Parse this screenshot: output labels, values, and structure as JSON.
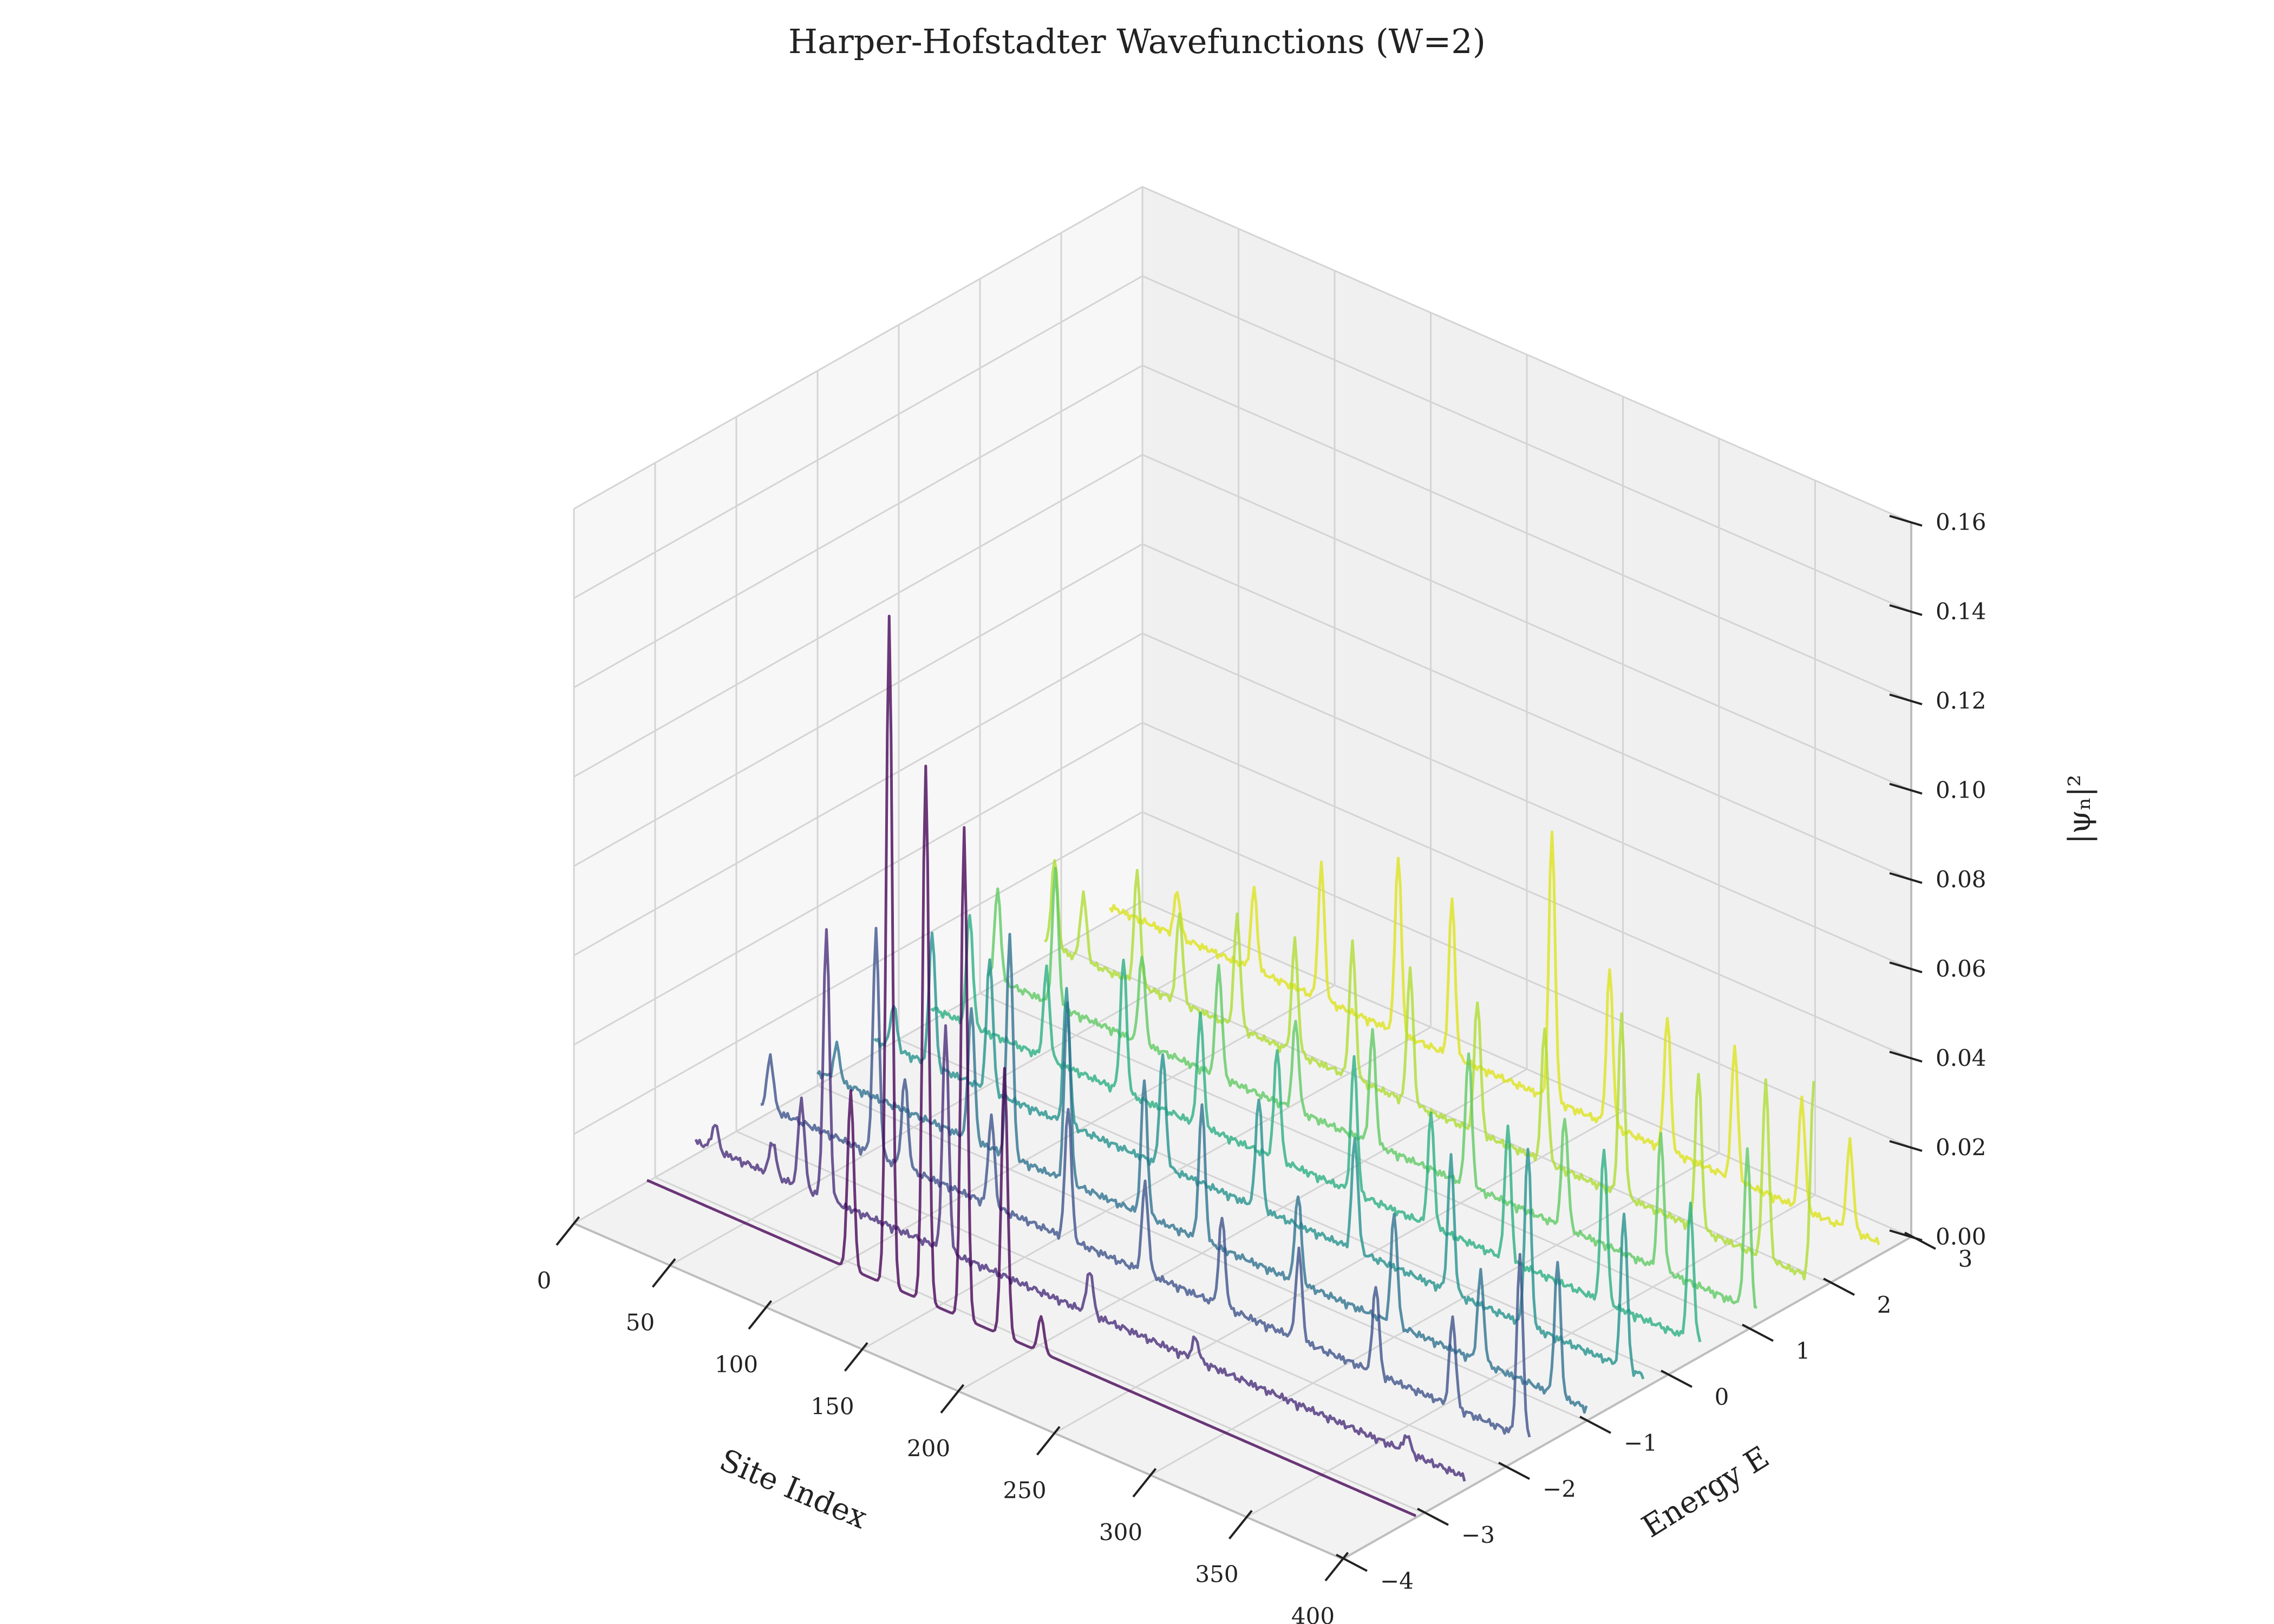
{
  "chart_data": {
    "type": "line",
    "title": "Harper-Hofstadter Wavefunctions (W=2)",
    "projection": "3d",
    "xlabel": "Site Index",
    "ylabel": "Energy E",
    "zlabel": "|ψₙ|²",
    "xlim": [
      0,
      400
    ],
    "ylim": [
      -4,
      3
    ],
    "zlim": [
      0,
      0.16
    ],
    "x_ticks": [
      "0",
      "50",
      "100",
      "150",
      "200",
      "250",
      "300",
      "350",
      "400"
    ],
    "y_ticks": [
      "−4",
      "−3",
      "−2",
      "−1",
      "0",
      "1",
      "2",
      "3"
    ],
    "z_ticks": [
      "0.00",
      "0.02",
      "0.04",
      "0.06",
      "0.08",
      "0.10",
      "0.12",
      "0.14",
      "0.16"
    ],
    "grid": true,
    "colormap": "viridis",
    "series": [
      {
        "energy": -3.1,
        "color": "#440154",
        "peaks": [
          [
            106,
            0.04
          ],
          [
            126,
            0.15
          ],
          [
            145,
            0.12
          ],
          [
            165,
            0.11
          ],
          [
            186,
            0.06
          ],
          [
            205,
            0.008
          ]
        ]
      },
      {
        "energy": -2.5,
        "color": "#472c7a",
        "peaks": [
          [
            10,
            0.006
          ],
          [
            40,
            0.008
          ],
          [
            55,
            0.02
          ],
          [
            68,
            0.06
          ],
          [
            130,
            0.05
          ],
          [
            205,
            0.01
          ],
          [
            260,
            0.005
          ],
          [
            370,
            0.004
          ]
        ]
      },
      {
        "energy": -1.7,
        "color": "#3b518b",
        "peaks": [
          [
            5,
            0.012
          ],
          [
            60,
            0.05
          ],
          [
            75,
            0.02
          ],
          [
            120,
            0.02
          ],
          [
            160,
            0.03
          ],
          [
            200,
            0.02
          ],
          [
            240,
            0.02
          ],
          [
            280,
            0.02
          ],
          [
            320,
            0.02
          ],
          [
            360,
            0.02
          ],
          [
            395,
            0.04
          ]
        ]
      },
      {
        "energy": -1.0,
        "color": "#2c718e",
        "peaks": [
          [
            10,
            0.008
          ],
          [
            80,
            0.03
          ],
          [
            100,
            0.05
          ],
          [
            130,
            0.04
          ],
          [
            170,
            0.03
          ],
          [
            200,
            0.03
          ],
          [
            250,
            0.02
          ],
          [
            300,
            0.025
          ],
          [
            345,
            0.02
          ],
          [
            385,
            0.03
          ]
        ]
      },
      {
        "energy": -0.3,
        "color": "#21918c",
        "peaks": [
          [
            10,
            0.01
          ],
          [
            30,
            0.03
          ],
          [
            60,
            0.03
          ],
          [
            100,
            0.03
          ],
          [
            150,
            0.025
          ],
          [
            200,
            0.025
          ],
          [
            250,
            0.025
          ],
          [
            300,
            0.03
          ],
          [
            340,
            0.04
          ],
          [
            390,
            0.035
          ]
        ]
      },
      {
        "energy": 0.4,
        "color": "#28ae80",
        "peaks": [
          [
            20,
            0.025
          ],
          [
            60,
            0.02
          ],
          [
            100,
            0.03
          ],
          [
            140,
            0.025
          ],
          [
            180,
            0.025
          ],
          [
            220,
            0.03
          ],
          [
            260,
            0.025
          ],
          [
            300,
            0.03
          ],
          [
            350,
            0.035
          ],
          [
            395,
            0.03
          ]
        ]
      },
      {
        "energy": 1.1,
        "color": "#5ec962",
        "peaks": [
          [
            5,
            0.02
          ],
          [
            35,
            0.03
          ],
          [
            80,
            0.02
          ],
          [
            120,
            0.025
          ],
          [
            160,
            0.02
          ],
          [
            200,
            0.025
          ],
          [
            250,
            0.03
          ],
          [
            300,
            0.025
          ],
          [
            350,
            0.03
          ],
          [
            395,
            0.035
          ]
        ]
      },
      {
        "energy": 1.8,
        "color": "#addc30",
        "peaks": [
          [
            5,
            0.02
          ],
          [
            20,
            0.015
          ],
          [
            48,
            0.025
          ],
          [
            70,
            0.02
          ],
          [
            100,
            0.025
          ],
          [
            130,
            0.025
          ],
          [
            160,
            0.03
          ],
          [
            190,
            0.03
          ],
          [
            225,
            0.03
          ],
          [
            260,
            0.03
          ],
          [
            300,
            0.04
          ],
          [
            340,
            0.035
          ],
          [
            375,
            0.04
          ],
          [
            400,
            0.045
          ]
        ]
      },
      {
        "energy": 2.6,
        "color": "#dde318",
        "peaks": [
          [
            35,
            0.01
          ],
          [
            75,
            0.018
          ],
          [
            110,
            0.03
          ],
          [
            150,
            0.04
          ],
          [
            178,
            0.035
          ],
          [
            230,
            0.06
          ],
          [
            260,
            0.035
          ],
          [
            290,
            0.03
          ],
          [
            325,
            0.03
          ],
          [
            360,
            0.025
          ],
          [
            385,
            0.02
          ]
        ]
      }
    ]
  }
}
